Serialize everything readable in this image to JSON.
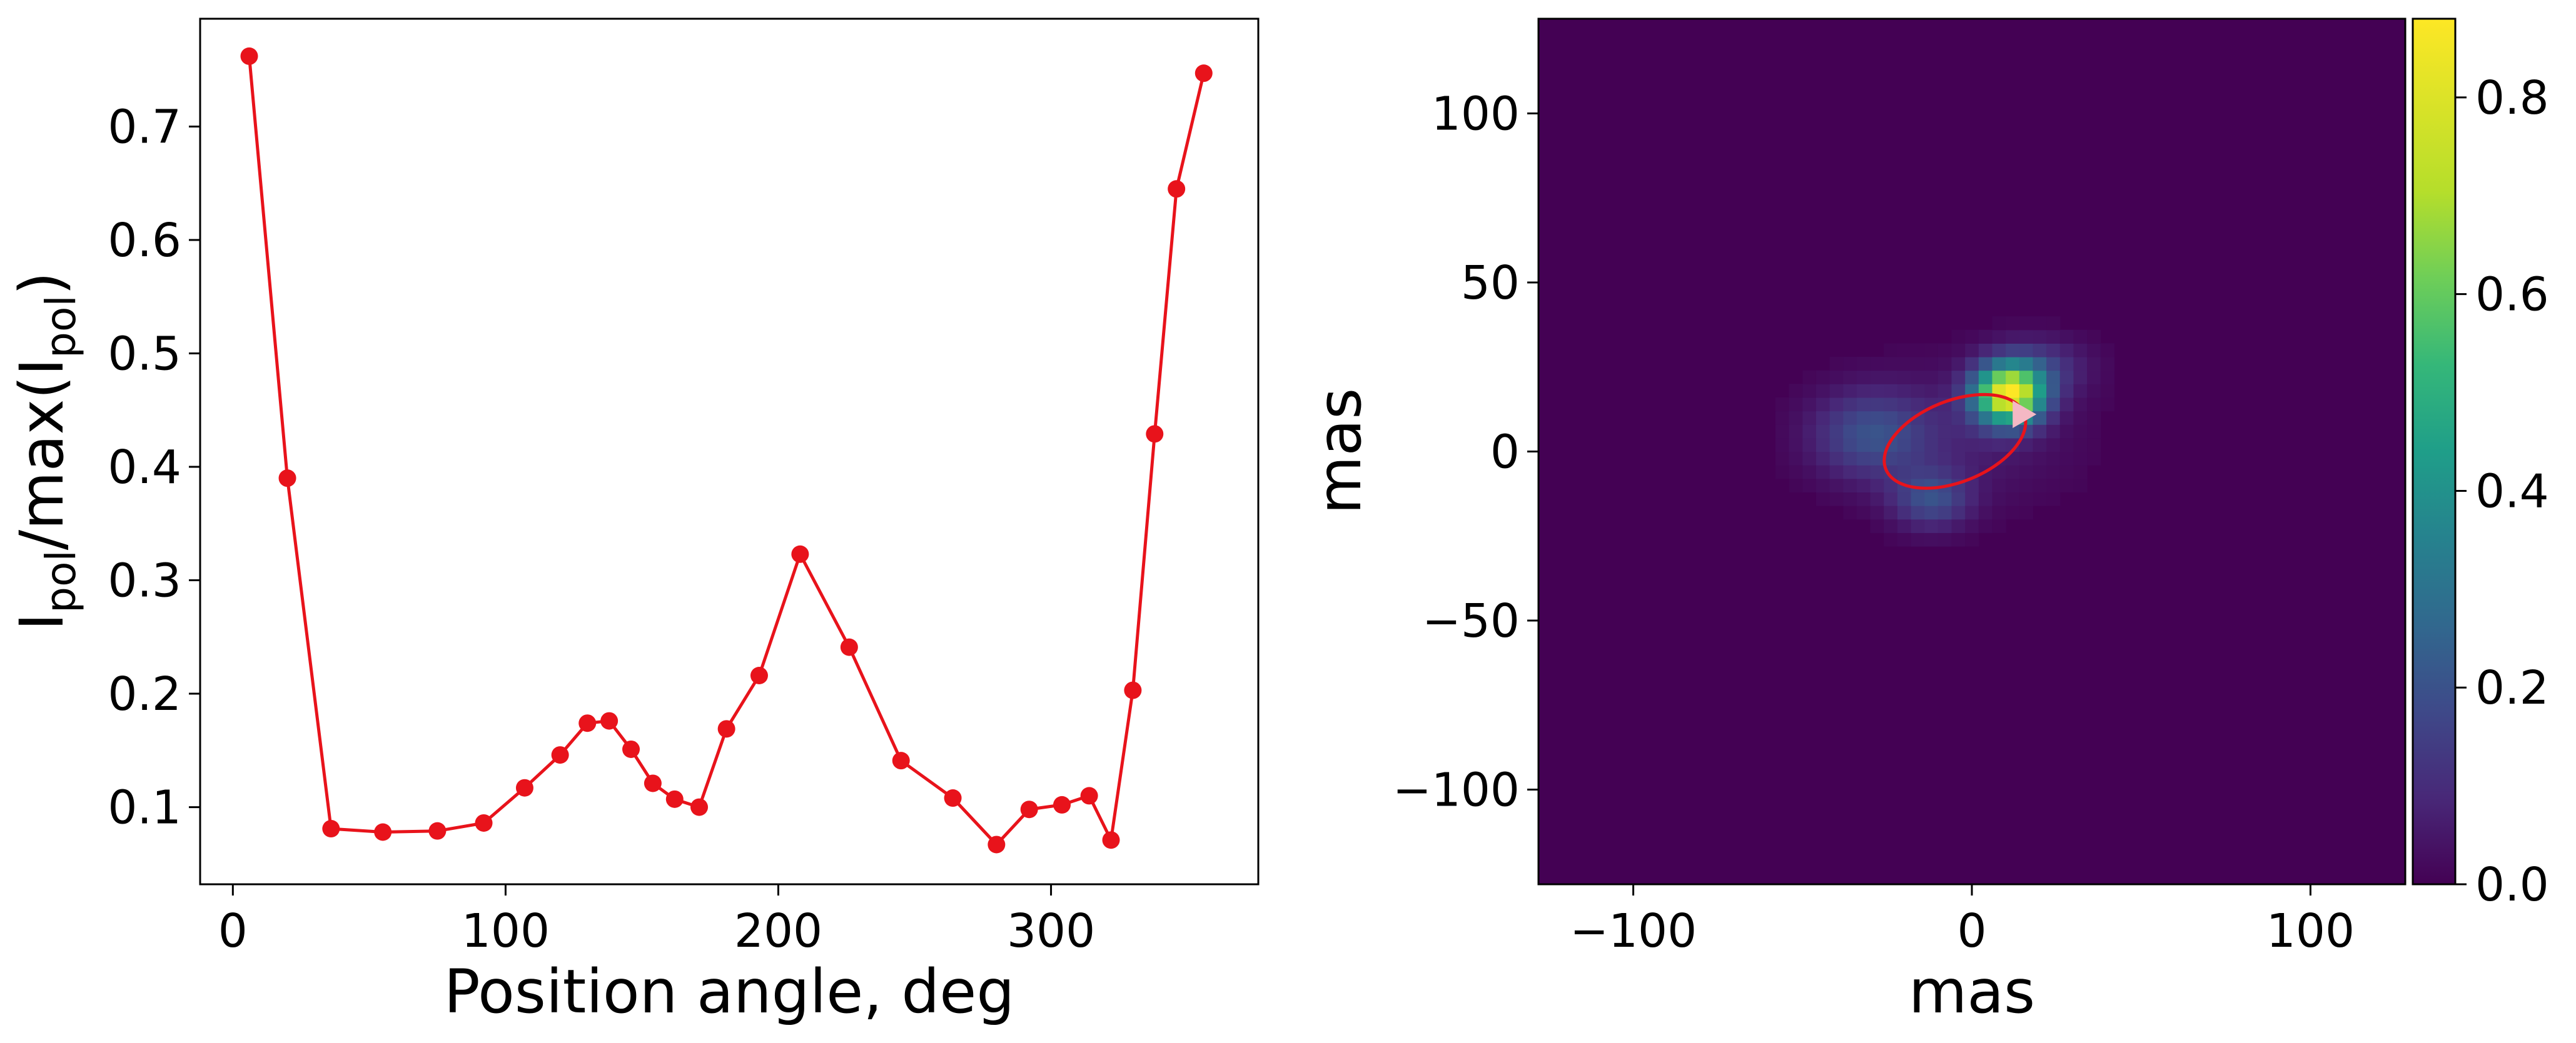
{
  "chart_data": [
    {
      "type": "line",
      "xlabel": "Position angle, deg",
      "ylabel": {
        "base1": "I",
        "sub1": "pol",
        "mid": "/max(I",
        "sub2": "pol",
        "end": ")"
      },
      "xlim": [
        -12,
        376
      ],
      "ylim": [
        0.032,
        0.795
      ],
      "xticks": [
        0,
        100,
        200,
        300
      ],
      "yticks": [
        0.1,
        0.2,
        0.3,
        0.4,
        0.5,
        0.6,
        0.7
      ],
      "grid": false,
      "color": "#e8131b",
      "series": [
        {
          "x": [
            6,
            20,
            36,
            55,
            75,
            92,
            107,
            120,
            130,
            138,
            146,
            154,
            162,
            171,
            181,
            193,
            208,
            226,
            245,
            264,
            280,
            292,
            304,
            314,
            322,
            330,
            338,
            346,
            356
          ],
          "y": [
            0.762,
            0.39,
            0.081,
            0.078,
            0.079,
            0.086,
            0.117,
            0.146,
            0.174,
            0.176,
            0.151,
            0.121,
            0.107,
            0.1,
            0.169,
            0.216,
            0.323,
            0.241,
            0.141,
            0.108,
            0.067,
            0.098,
            0.102,
            0.11,
            0.071,
            0.203,
            0.429,
            0.645,
            0.747
          ]
        }
      ]
    },
    {
      "type": "heatmap",
      "xlabel": "mas",
      "ylabel": "mas",
      "xlim": [
        -128,
        128
      ],
      "ylim": [
        -128,
        128
      ],
      "xticks": [
        -100,
        0,
        100
      ],
      "yticks": [
        -100,
        -50,
        0,
        50,
        100
      ],
      "xtick_labels": [
        "−100",
        "0",
        "100"
      ],
      "ytick_labels": [
        "−100",
        "−50",
        "0",
        "50",
        "100"
      ],
      "grid": false,
      "colormap": "viridis",
      "colorbar": {
        "range": [
          0,
          0.88
        ],
        "ticks": [
          0.0,
          0.2,
          0.4,
          0.6,
          0.8
        ],
        "tick_labels": [
          "0.0",
          "0.2",
          "0.4",
          "0.6",
          "0.8"
        ]
      },
      "sources": [
        {
          "x": 11,
          "y": 17,
          "sx": 7,
          "sy": 6,
          "amp": 0.82
        },
        {
          "x": 20,
          "y": 25,
          "sx": 10,
          "sy": 6,
          "amp": 0.12
        },
        {
          "x": -30,
          "y": 5,
          "sx": 12,
          "sy": 9,
          "amp": 0.18
        },
        {
          "x": -12,
          "y": -14,
          "sx": 8,
          "sy": 6,
          "amp": 0.18
        },
        {
          "x": -2,
          "y": 5,
          "sx": 22,
          "sy": 14,
          "amp": 0.06
        }
      ],
      "ellipse": {
        "cx": -5,
        "cy": 3,
        "rx": 22,
        "ry": 12,
        "angle_deg": 22,
        "color": "#e8131b"
      },
      "marker": {
        "x": 15,
        "y": 11,
        "shape": "triangle-right",
        "color": "#f4b8c4"
      }
    }
  ]
}
